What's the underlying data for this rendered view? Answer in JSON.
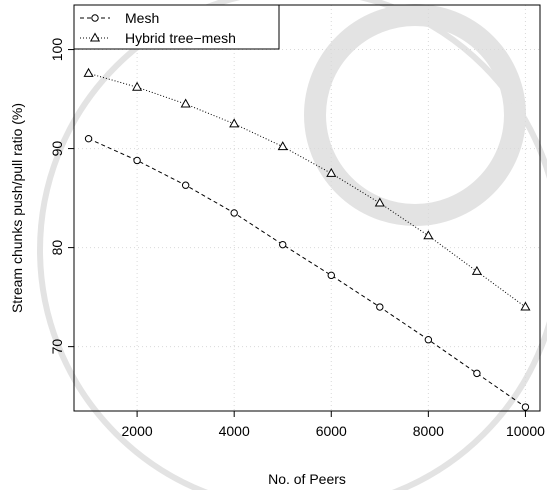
{
  "chart_data": {
    "type": "line",
    "xlabel": "No. of Peers",
    "ylabel": "Stream chunks push/pull ratio (%)",
    "xlim": [
      700,
      10300
    ],
    "ylim": [
      63.5,
      104.5
    ],
    "x_ticks": [
      2000,
      4000,
      6000,
      8000,
      10000
    ],
    "y_ticks": [
      70,
      80,
      90,
      100
    ],
    "grid": true,
    "legend_position": "top-left",
    "x": [
      1000,
      2000,
      3000,
      4000,
      5000,
      6000,
      7000,
      8000,
      9000,
      10000
    ],
    "series": [
      {
        "name": "Mesh",
        "line_style": "dashed",
        "marker": "circle",
        "values": [
          91.0,
          88.8,
          86.3,
          83.5,
          80.3,
          77.2,
          74.0,
          70.7,
          67.3,
          63.9
        ]
      },
      {
        "name": "Hybrid tree−mesh",
        "line_style": "dotted",
        "marker": "triangle",
        "values": [
          97.6,
          96.2,
          94.5,
          92.5,
          90.2,
          87.5,
          84.5,
          81.2,
          77.6,
          74.0
        ]
      }
    ],
    "colors": {
      "line": "#000000",
      "grid": "#d9d9d9",
      "background": "#ffffff",
      "watermark": "#e3e3e3"
    }
  }
}
